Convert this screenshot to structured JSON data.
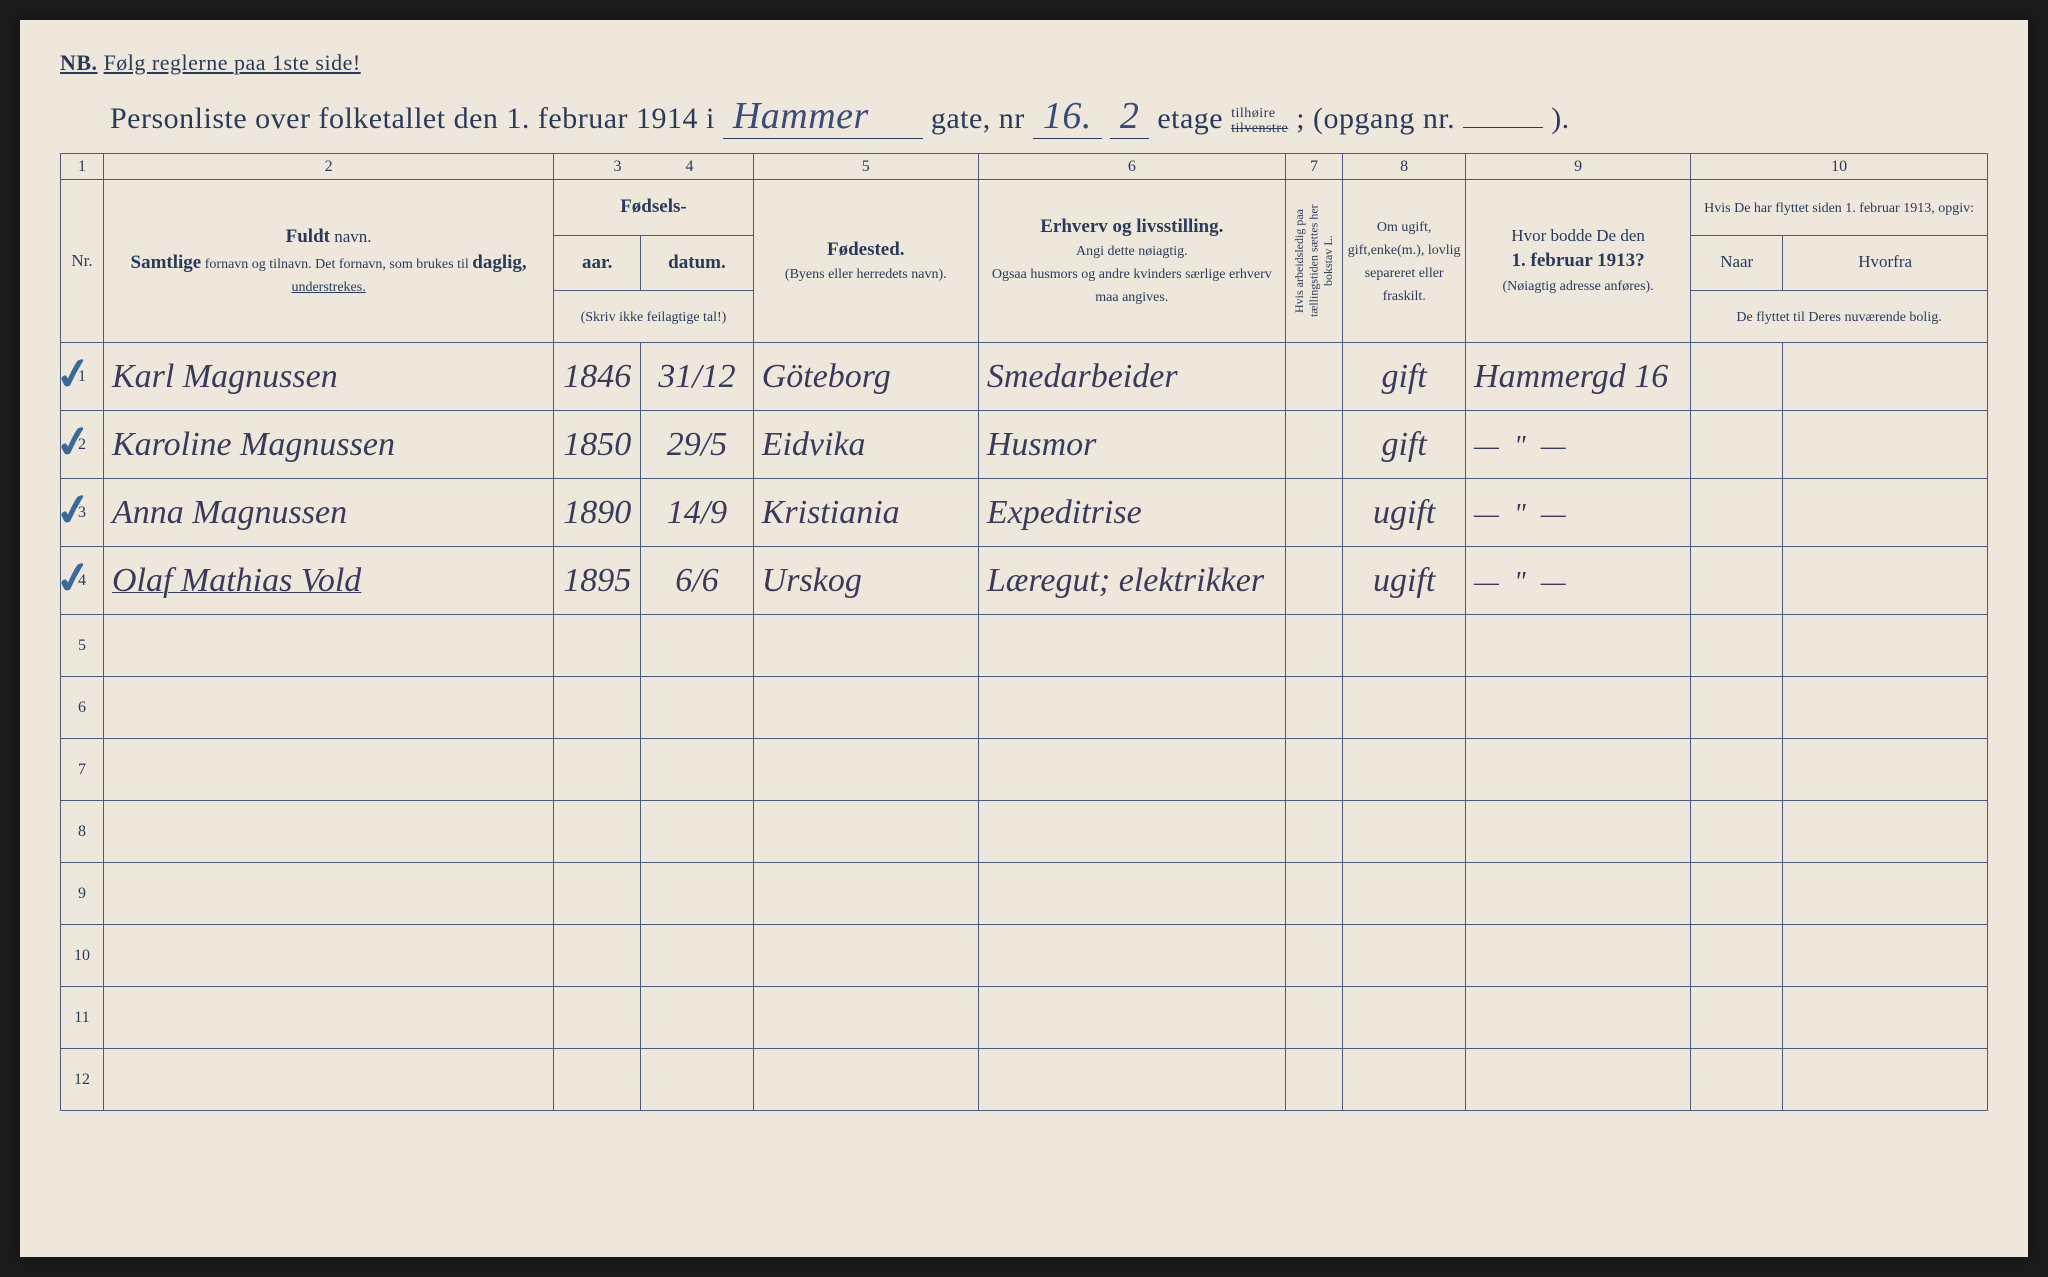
{
  "document": {
    "nb_label": "NB.",
    "nb_text": "Følg reglerne paa 1ste side!",
    "title_prefix": "Personliste over folketallet den 1. februar 1914 i",
    "street_handwritten": "Hammer",
    "gate_label": " gate, nr ",
    "street_nr_handwritten": "16.",
    "etage_label": " etage ",
    "etage_handwritten": "2",
    "side_option_top": "tilhøire",
    "side_option_bottom": "tilvenstre",
    "opgang_label": "; (opgang nr.",
    "opgang_suffix": ").",
    "paper_bg": "#ede8db",
    "ink_color": "#2a3a5a",
    "handwriting_color": "#3a3a5a",
    "checkmark_color": "#3a6a9a"
  },
  "column_numbers": [
    "1",
    "2",
    "3",
    "4",
    "5",
    "6",
    "7",
    "8",
    "9",
    "10"
  ],
  "headers": {
    "nr": "Nr.",
    "name_title": "Fuldt",
    "name_title2": "navn.",
    "name_sub1": "Samtlige",
    "name_sub2": "fornavn og tilnavn.  Det fornavn, som brukes til",
    "name_sub3": "daglig,",
    "name_sub4": "understrekes.",
    "birth_group": "Fødsels-",
    "year": "aar.",
    "date": "datum.",
    "birth_note": "(Skriv ikke feilagtige tal!)",
    "birthplace": "Fødested.",
    "birthplace_sub": "(Byens eller herredets navn).",
    "occupation": "Erhverv og livsstilling.",
    "occupation_sub1": "Angi dette nøiagtig.",
    "occupation_sub2": "Ogsaa husmors og andre kvinders særlige erhverv maa angives.",
    "absent": "Hvis arbeidsledig paa tællingstiden sættes her bokstav L.",
    "marital": "Om ugift, gift,enke(m.), lovlig separeret eller fraskilt.",
    "addr1913": "Hvor bodde De den",
    "addr1913_bold": "1. februar 1913?",
    "addr1913_sub": "(Nøiagtig adresse anføres).",
    "moved_title": "Hvis De har flyttet siden 1. februar 1913, opgiv:",
    "moved_when": "Naar",
    "moved_from": "Hvorfra",
    "moved_sub": "De flyttet til Deres nuværende bolig."
  },
  "rows": [
    {
      "nr": "1",
      "check": true,
      "name": "Karl Magnussen",
      "year": "1846",
      "date": "31/12",
      "birthplace": "Göteborg",
      "occupation": "Smedarbeider",
      "marital": "gift",
      "addr1913": "Hammergd 16"
    },
    {
      "nr": "2",
      "check": true,
      "name": "Karoline Magnussen",
      "year": "1850",
      "date": "29/5",
      "birthplace": "Eidvika",
      "occupation": "Husmor",
      "marital": "gift",
      "addr1913": "— \" —"
    },
    {
      "nr": "3",
      "check": true,
      "name": "Anna Magnussen",
      "year": "1890",
      "date": "14/9",
      "birthplace": "Kristiania",
      "occupation": "Expeditrise",
      "marital": "ugift",
      "addr1913": "— \" —"
    },
    {
      "nr": "4",
      "check": true,
      "name": "Olaf Mathias Vold",
      "name_underlined": true,
      "year": "1895",
      "date": "6/6",
      "birthplace": "Urskog",
      "occupation": "Læregut; elektrikker",
      "marital": "ugift",
      "addr1913": "— \" —"
    }
  ],
  "empty_rows": [
    "5",
    "6",
    "7",
    "8",
    "9",
    "10",
    "11",
    "12"
  ]
}
